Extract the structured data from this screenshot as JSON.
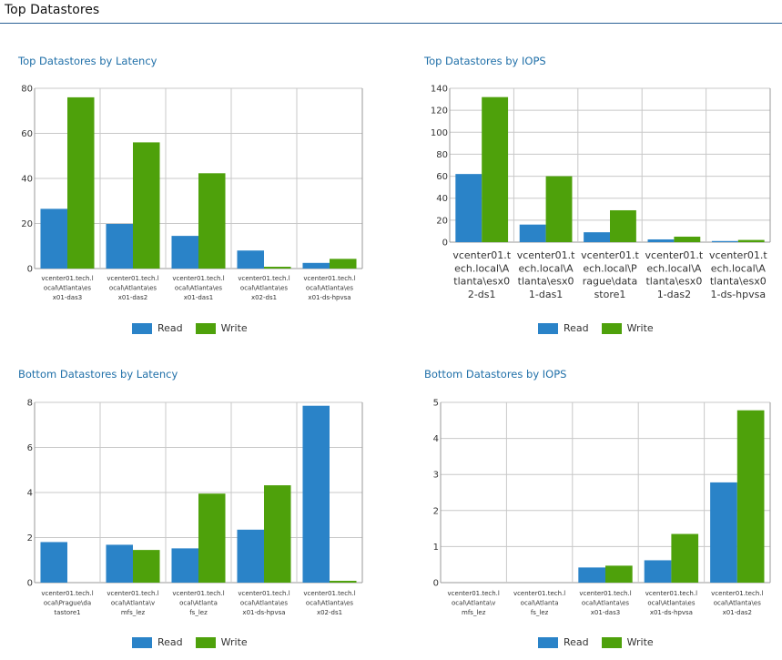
{
  "page": {
    "title": "Top Datastores"
  },
  "colors": {
    "read": "#2a83c8",
    "write": "#4ea10b",
    "grid": "#c8c8c8",
    "axis": "#999999"
  },
  "chart_data": [
    {
      "type": "bar",
      "title": "Top Datastores by Latency",
      "categories": [
        [
          "vcenter01.tech.l",
          "ocal\\Atlanta\\es",
          "x01-das3"
        ],
        [
          "vcenter01.tech.l",
          "ocal\\Atlanta\\es",
          "x01-das2"
        ],
        [
          "vcenter01.tech.l",
          "ocal\\Atlanta\\es",
          "x01-das1"
        ],
        [
          "vcenter01.tech.l",
          "ocal\\Atlanta\\es",
          "x02-ds1"
        ],
        [
          "vcenter01.tech.l",
          "ocal\\Atlanta\\es",
          "x01-ds-hpvsa"
        ]
      ],
      "series": [
        {
          "name": "Read",
          "values": [
            26.5,
            19.8,
            14.5,
            8.0,
            2.5
          ]
        },
        {
          "name": "Write",
          "values": [
            76,
            56,
            42.3,
            0.8,
            4.3
          ]
        }
      ],
      "ylim": [
        0,
        80
      ],
      "yticks": [
        0,
        20,
        40,
        60,
        80
      ],
      "legend": "bottom"
    },
    {
      "type": "bar",
      "title": "Top Datastores by IOPS",
      "categories": [
        [
          "vcenter01.t",
          "ech.local\\A",
          "tlanta\\esx0",
          "2-ds1"
        ],
        [
          "vcenter01.t",
          "ech.local\\A",
          "tlanta\\esx0",
          "1-das1"
        ],
        [
          "vcenter01.t",
          "ech.local\\P",
          "rague\\data",
          "store1"
        ],
        [
          "vcenter01.t",
          "ech.local\\A",
          "tlanta\\esx0",
          "1-das2"
        ],
        [
          "vcenter01.t",
          "ech.local\\A",
          "tlanta\\esx0",
          "1-ds-hpvsa"
        ]
      ],
      "series": [
        {
          "name": "Read",
          "values": [
            62,
            16,
            9,
            2.5,
            1
          ]
        },
        {
          "name": "Write",
          "values": [
            132,
            60,
            29,
            5,
            2
          ]
        }
      ],
      "ylim": [
        0,
        140
      ],
      "yticks": [
        0,
        20,
        40,
        60,
        80,
        100,
        120,
        140
      ],
      "legend": "bottom"
    },
    {
      "type": "bar",
      "title": "Bottom Datastores by Latency",
      "categories": [
        [
          "vcenter01.tech.l",
          "ocal\\Prague\\da",
          "tastore1"
        ],
        [
          "vcenter01.tech.l",
          "ocal\\Atlanta\\v",
          "mfs_lez"
        ],
        [
          "vcenter01.tech.l",
          "ocal\\Atlanta",
          "fs_lez"
        ],
        [
          "vcenter01.tech.l",
          "ocal\\Atlanta\\es",
          "x01-ds-hpvsa"
        ],
        [
          "vcenter01.tech.l",
          "ocal\\Atlanta\\es",
          "x02-ds1"
        ]
      ],
      "series": [
        {
          "name": "Read",
          "values": [
            1.8,
            1.68,
            1.52,
            2.35,
            7.85
          ]
        },
        {
          "name": "Write",
          "values": [
            0,
            1.45,
            3.95,
            4.32,
            0.08
          ]
        }
      ],
      "ylim": [
        0,
        8
      ],
      "yticks": [
        0,
        2,
        4,
        6,
        8
      ],
      "legend": "bottom"
    },
    {
      "type": "bar",
      "title": "Bottom Datastores by IOPS",
      "categories": [
        [
          "vcenter01.tech.l",
          "ocal\\Atlanta\\v",
          "mfs_lez"
        ],
        [
          "vcenter01.tech.l",
          "ocal\\Atlanta",
          "fs_lez"
        ],
        [
          "vcenter01.tech.l",
          "ocal\\Atlanta\\es",
          "x01-das3"
        ],
        [
          "vcenter01.tech.l",
          "ocal\\Atlanta\\es",
          "x01-ds-hpvsa"
        ],
        [
          "vcenter01.tech.l",
          "ocal\\Atlanta\\es",
          "x01-das2"
        ]
      ],
      "series": [
        {
          "name": "Read",
          "values": [
            0,
            0,
            0.42,
            0.62,
            2.78
          ]
        },
        {
          "name": "Write",
          "values": [
            0,
            0,
            0.47,
            1.35,
            4.78
          ]
        }
      ],
      "ylim": [
        0,
        5
      ],
      "yticks": [
        0,
        1,
        2,
        3,
        4,
        5
      ],
      "legend": "bottom"
    }
  ]
}
